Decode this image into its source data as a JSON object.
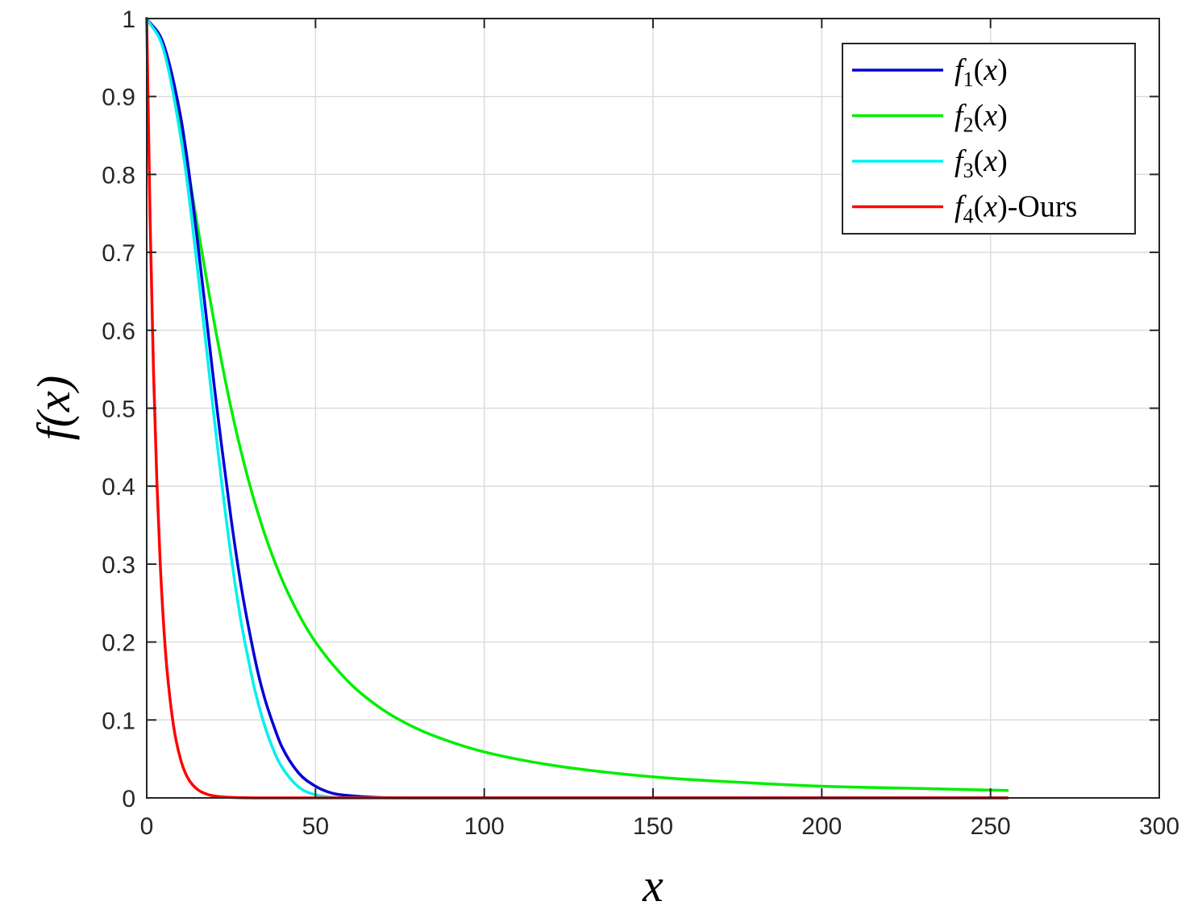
{
  "chart_data": {
    "type": "line",
    "xlabel": "x",
    "ylabel": "f(x)",
    "xlim": [
      0,
      300
    ],
    "ylim": [
      0,
      1
    ],
    "x_ticks": [
      0,
      50,
      100,
      150,
      200,
      250,
      300
    ],
    "y_ticks": [
      0,
      0.1,
      0.2,
      0.3,
      0.4,
      0.5,
      0.6,
      0.7,
      0.8,
      0.9,
      1
    ],
    "x_tick_labels": [
      "0",
      "50",
      "100",
      "150",
      "200",
      "250",
      "300"
    ],
    "y_tick_labels": [
      "0",
      "0.1",
      "0.2",
      "0.3",
      "0.4",
      "0.5",
      "0.6",
      "0.7",
      "0.8",
      "0.9",
      "1"
    ],
    "grid": true,
    "legend_position": "top-right",
    "series": [
      {
        "name": "f1(x)",
        "color": "#0000d4",
        "x": [
          0,
          5,
          10,
          12,
          15,
          18,
          20,
          22,
          25,
          28,
          30,
          33,
          35,
          38,
          40,
          45,
          50,
          55,
          60,
          70,
          80,
          100,
          150,
          200,
          255
        ],
        "y": [
          1,
          0.967,
          0.875,
          0.819,
          0.716,
          0.604,
          0.529,
          0.458,
          0.358,
          0.271,
          0.223,
          0.16,
          0.127,
          0.088,
          0.066,
          0.032,
          0.015,
          0.006,
          0.003,
          0.0004,
          4e-05,
          0,
          0,
          0,
          0
        ]
      },
      {
        "name": "f2(x)",
        "color": "#00ee00",
        "x": [
          0,
          5,
          10,
          15,
          20,
          25,
          30,
          35,
          40,
          45,
          50,
          60,
          70,
          80,
          90,
          100,
          120,
          150,
          180,
          200,
          230,
          255
        ],
        "y": [
          1,
          0.962,
          0.862,
          0.735,
          0.61,
          0.5,
          0.41,
          0.338,
          0.281,
          0.236,
          0.2,
          0.148,
          0.113,
          0.089,
          0.072,
          0.059,
          0.042,
          0.027,
          0.019,
          0.015,
          0.012,
          0.0095
        ]
      },
      {
        "name": "f3(x)",
        "color": "#00f0f0",
        "x": [
          0,
          5,
          10,
          12,
          15,
          18,
          20,
          22,
          25,
          28,
          30,
          32,
          35,
          38,
          40,
          45,
          50,
          60,
          80,
          100,
          150,
          200,
          255
        ],
        "y": [
          1,
          0.96,
          0.85,
          0.79,
          0.68,
          0.565,
          0.487,
          0.412,
          0.31,
          0.225,
          0.18,
          0.139,
          0.092,
          0.057,
          0.04,
          0.014,
          0.004,
          0.0002,
          0,
          0,
          0,
          0,
          0
        ]
      },
      {
        "name": "f4(x)-Ours",
        "color": "#ff0000",
        "x": [
          0,
          1,
          2,
          3,
          4,
          5,
          6,
          8,
          10,
          12,
          15,
          18,
          20,
          25,
          30,
          35,
          40,
          50,
          60,
          80,
          100,
          150,
          200,
          255
        ],
        "y": [
          1,
          0.741,
          0.549,
          0.407,
          0.301,
          0.223,
          0.165,
          0.091,
          0.05,
          0.027,
          0.011,
          0.0045,
          0.0025,
          0.0006,
          0.0001,
          0,
          0,
          0,
          0,
          0,
          0,
          0,
          0,
          0
        ]
      }
    ]
  }
}
